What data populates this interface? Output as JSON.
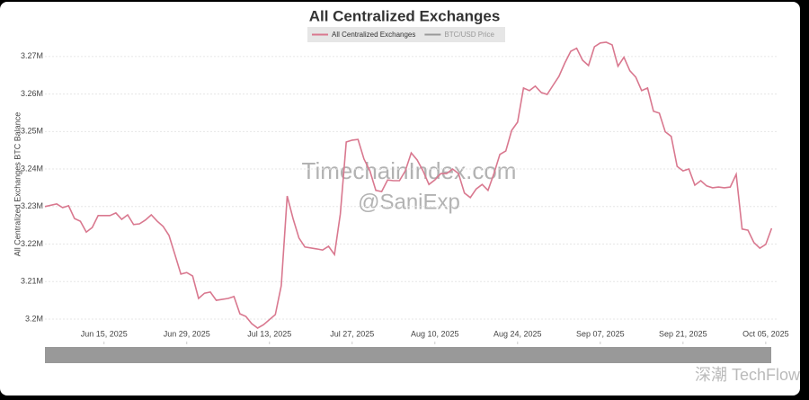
{
  "chart_data": {
    "type": "line",
    "title": "All Centralized Exchanges",
    "y_label": "All Centralized Exchanges BTC Balance",
    "watermarks": [
      "TimechainIndex.com",
      "@SaniExp"
    ],
    "source_mark": "深潮 TechFlow",
    "grid": true,
    "legend": "top",
    "hidden_series": [
      {
        "name": "BTC/USD Price",
        "color": "#999999"
      }
    ],
    "xlim": [
      "2025-06-05",
      "2025-10-07"
    ],
    "xticks": [
      {
        "value": "2025-06-15",
        "label": "Jun 15, 2025"
      },
      {
        "value": "2025-06-29",
        "label": "Jun 29, 2025"
      },
      {
        "value": "2025-07-13",
        "label": "Jul 13, 2025"
      },
      {
        "value": "2025-07-27",
        "label": "Jul 27, 2025"
      },
      {
        "value": "2025-08-10",
        "label": "Aug 10, 2025"
      },
      {
        "value": "2025-08-24",
        "label": "Aug 24, 2025"
      },
      {
        "value": "2025-09-07",
        "label": "Sep 07, 2025"
      },
      {
        "value": "2025-09-21",
        "label": "Sep 21, 2025"
      },
      {
        "value": "2025-10-05",
        "label": "Oct 05, 2025"
      }
    ],
    "ylim": [
      3194000,
      3275000
    ],
    "yticks": [
      {
        "value": 3200000,
        "label": "3.2M"
      },
      {
        "value": 3210000,
        "label": "3.21M"
      },
      {
        "value": 3220000,
        "label": "3.22M"
      },
      {
        "value": 3230000,
        "label": "3.23M"
      },
      {
        "value": 3240000,
        "label": "3.24M"
      },
      {
        "value": 3250000,
        "label": "3.25M"
      },
      {
        "value": 3260000,
        "label": "3.26M"
      },
      {
        "value": 3270000,
        "label": "3.27M"
      }
    ],
    "x": [
      "2025-06-05",
      "2025-06-07",
      "2025-06-08",
      "2025-06-09",
      "2025-06-10",
      "2025-06-11",
      "2025-06-12",
      "2025-06-13",
      "2025-06-14",
      "2025-06-16",
      "2025-06-17",
      "2025-06-18",
      "2025-06-19",
      "2025-06-20",
      "2025-06-21",
      "2025-06-22",
      "2025-06-23",
      "2025-06-24",
      "2025-06-25",
      "2025-06-26",
      "2025-06-27",
      "2025-06-28",
      "2025-06-29",
      "2025-06-30",
      "2025-07-01",
      "2025-07-02",
      "2025-07-03",
      "2025-07-04",
      "2025-07-06",
      "2025-07-07",
      "2025-07-08",
      "2025-07-09",
      "2025-07-10",
      "2025-07-11",
      "2025-07-12",
      "2025-07-14",
      "2025-07-15",
      "2025-07-16",
      "2025-07-17",
      "2025-07-18",
      "2025-07-19",
      "2025-07-21",
      "2025-07-22",
      "2025-07-23",
      "2025-07-24",
      "2025-07-25",
      "2025-07-26",
      "2025-07-27",
      "2025-07-28",
      "2025-07-29",
      "2025-07-30",
      "2025-07-31",
      "2025-08-01",
      "2025-08-02",
      "2025-08-03",
      "2025-08-04",
      "2025-08-05",
      "2025-08-06",
      "2025-08-07",
      "2025-08-08",
      "2025-08-09",
      "2025-08-10",
      "2025-08-11",
      "2025-08-12",
      "2025-08-13",
      "2025-08-14",
      "2025-08-15",
      "2025-08-16",
      "2025-08-17",
      "2025-08-18",
      "2025-08-19",
      "2025-08-20",
      "2025-08-21",
      "2025-08-22",
      "2025-08-23",
      "2025-08-24",
      "2025-08-25",
      "2025-08-26",
      "2025-08-27",
      "2025-08-28",
      "2025-08-29",
      "2025-08-30",
      "2025-08-31",
      "2025-09-01",
      "2025-09-02",
      "2025-09-03",
      "2025-09-04",
      "2025-09-05",
      "2025-09-06",
      "2025-09-07",
      "2025-09-08",
      "2025-09-09",
      "2025-09-10",
      "2025-09-11",
      "2025-09-12",
      "2025-09-13",
      "2025-09-14",
      "2025-09-15",
      "2025-09-16",
      "2025-09-17",
      "2025-09-18",
      "2025-09-19",
      "2025-09-20",
      "2025-09-21",
      "2025-09-22",
      "2025-09-23",
      "2025-09-24",
      "2025-09-25",
      "2025-09-26",
      "2025-09-27",
      "2025-09-28",
      "2025-09-29",
      "2025-09-30",
      "2025-10-01",
      "2025-10-02",
      "2025-10-03",
      "2025-10-04",
      "2025-10-05",
      "2025-10-06"
    ],
    "series": [
      {
        "name": "All Centralized Exchanges",
        "color": "#d9788f",
        "values": [
          3230000,
          3230700,
          3229700,
          3230200,
          3226800,
          3226100,
          3223200,
          3224400,
          3227600,
          3227600,
          3228300,
          3226600,
          3227800,
          3225200,
          3225400,
          3226400,
          3227800,
          3226100,
          3224700,
          3222300,
          3217200,
          3212000,
          3212400,
          3211500,
          3205500,
          3206900,
          3207200,
          3205000,
          3205500,
          3206000,
          3201400,
          3200700,
          3198800,
          3197600,
          3198500,
          3201200,
          3208900,
          3232800,
          3226800,
          3221600,
          3219200,
          3218700,
          3218400,
          3219400,
          3217200,
          3228000,
          3247200,
          3247700,
          3247900,
          3242700,
          3239500,
          3234300,
          3234000,
          3237100,
          3236900,
          3236900,
          3239500,
          3244300,
          3242400,
          3239500,
          3235900,
          3237100,
          3238800,
          3238800,
          3240000,
          3238800,
          3233600,
          3232400,
          3234700,
          3235900,
          3234300,
          3238800,
          3243900,
          3244800,
          3250300,
          3252500,
          3261600,
          3260900,
          3262100,
          3260400,
          3259900,
          3262300,
          3264700,
          3268300,
          3271400,
          3272200,
          3269000,
          3267600,
          3272600,
          3273600,
          3273800,
          3273100,
          3267400,
          3269800,
          3266200,
          3264500,
          3260900,
          3261600,
          3255400,
          3254900,
          3249900,
          3248700,
          3240700,
          3239500,
          3240000,
          3235700,
          3236900,
          3235500,
          3235000,
          3235200,
          3235000,
          3235200,
          3238600,
          3224000,
          3223700,
          3220400,
          3218900,
          3219900,
          3224200
        ]
      }
    ]
  }
}
